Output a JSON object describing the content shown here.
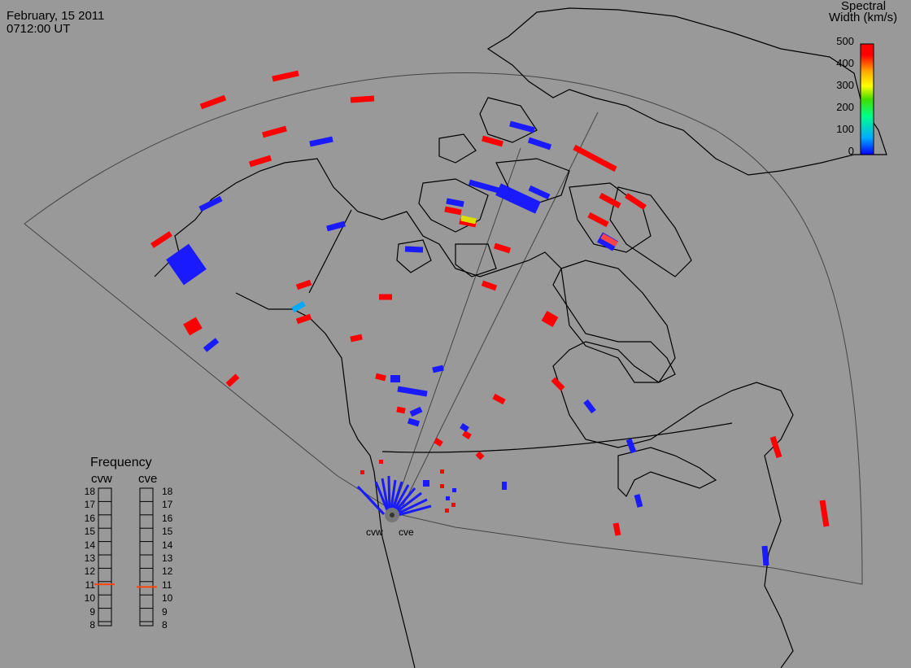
{
  "header": {
    "date": "February, 15 2011",
    "time": "0712:00 UT"
  },
  "colorbar": {
    "title_line1": "Spectral",
    "title_line2": "Width (km/s)",
    "ticks": [
      "500",
      "400",
      "300",
      "200",
      "100",
      "0"
    ],
    "min": 0,
    "max": 500,
    "colors": [
      "#0000ff",
      "#00aaff",
      "#00ff88",
      "#44dd00",
      "#ffff00",
      "#ffaa00",
      "#ff0000"
    ]
  },
  "frequency_panel": {
    "title": "Frequency",
    "radars": [
      "cvw",
      "cve"
    ],
    "scale": [
      "18",
      "17",
      "16",
      "15",
      "14",
      "13",
      "12",
      "11",
      "10",
      "9",
      "8"
    ],
    "cvw_value": 10.8,
    "cve_value": 10.6,
    "marker_color": "#ff4400"
  },
  "radars": {
    "cvw_label": "cvw",
    "cve_label": "cve"
  },
  "colors": {
    "background": "#999999",
    "coastline": "#000000",
    "fov": "#444444"
  }
}
